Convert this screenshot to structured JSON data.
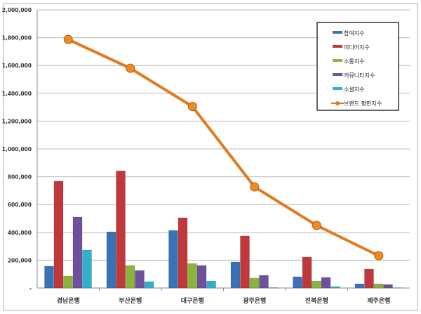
{
  "chart_data": {
    "type": "bar",
    "title": "",
    "xlabel": "",
    "ylabel": "",
    "ylim": [
      0,
      2000000
    ],
    "yticks": [
      "-",
      "200,000",
      "400,000",
      "600,000",
      "800,000",
      "1,000,000",
      "1,200,000",
      "1,400,000",
      "1,600,000",
      "1,800,000",
      "2,000,000"
    ],
    "categories": [
      "경남은행",
      "부산은행",
      "대구은행",
      "광주은행",
      "전북은행",
      "제주은행"
    ],
    "series": [
      {
        "name": "참여지수",
        "type": "bar",
        "color": "#3a72b8",
        "values": [
          157000,
          404000,
          414000,
          187000,
          81000,
          30000
        ]
      },
      {
        "name": "미디어지수",
        "type": "bar",
        "color": "#c0393a",
        "values": [
          768000,
          842000,
          505000,
          374000,
          222000,
          136000
        ]
      },
      {
        "name": "소통지수",
        "type": "bar",
        "color": "#8ab43e",
        "values": [
          86000,
          162000,
          176000,
          71000,
          50000,
          30000
        ]
      },
      {
        "name": "커뮤니티지수",
        "type": "bar",
        "color": "#70509a",
        "values": [
          510000,
          126000,
          162000,
          91000,
          76000,
          25000
        ]
      },
      {
        "name": "소셜지수",
        "type": "bar",
        "color": "#2fb0cc",
        "values": [
          273000,
          46000,
          50000,
          3000,
          10000,
          2000
        ]
      },
      {
        "name": "브랜드 평판지수",
        "type": "line",
        "color": "#e07b20",
        "values": [
          1787000,
          1580000,
          1305000,
          727000,
          450000,
          232000
        ]
      }
    ],
    "grid": true,
    "legend": "top-right"
  }
}
